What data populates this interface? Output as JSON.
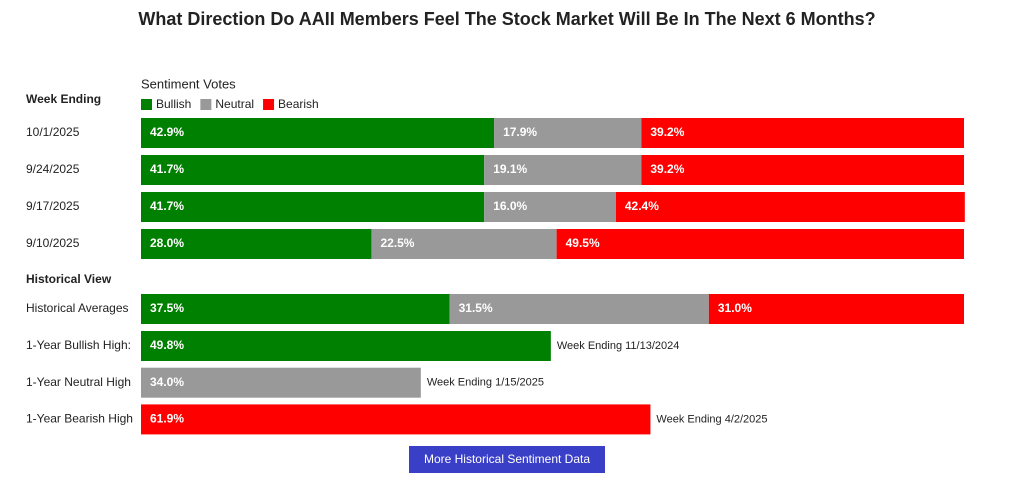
{
  "title": "What Direction Do AAII Members Feel The Stock Market Will Be In The Next 6 Months?",
  "legend_title": "Sentiment Votes",
  "week_ending_label": "Week Ending",
  "series": [
    {
      "name": "Bullish",
      "color": "#008000"
    },
    {
      "name": "Neutral",
      "color": "#999999"
    },
    {
      "name": "Bearish",
      "color": "#ff0000"
    }
  ],
  "weeks": [
    {
      "label": "10/1/2025",
      "values": [
        42.9,
        17.9,
        39.2
      ],
      "value_labels": [
        "42.9%",
        "17.9%",
        "39.2%"
      ]
    },
    {
      "label": "9/24/2025",
      "values": [
        41.7,
        19.1,
        39.2
      ],
      "value_labels": [
        "41.7%",
        "19.1%",
        "39.2%"
      ]
    },
    {
      "label": "9/17/2025",
      "values": [
        41.7,
        16.0,
        42.4
      ],
      "value_labels": [
        "41.7%",
        "16.0%",
        "42.4%"
      ]
    },
    {
      "label": "9/10/2025",
      "values": [
        28.0,
        22.5,
        49.5
      ],
      "value_labels": [
        "28.0%",
        "22.5%",
        "49.5%"
      ]
    }
  ],
  "historical_label": "Historical View",
  "historical_averages": {
    "label": "Historical Averages",
    "values": [
      37.5,
      31.5,
      31.0
    ],
    "value_labels": [
      "37.5%",
      "31.5%",
      "31.0%"
    ]
  },
  "highs": [
    {
      "label": "1-Year Bullish High:",
      "value": 49.8,
      "value_label": "49.8%",
      "color": "#008000",
      "note": "Week Ending 11/13/2024"
    },
    {
      "label": "1-Year Neutral High",
      "value": 34.0,
      "value_label": "34.0%",
      "color": "#999999",
      "note": "Week Ending 1/15/2025"
    },
    {
      "label": "1-Year Bearish High",
      "value": 61.9,
      "value_label": "61.9%",
      "color": "#ff0000",
      "note": "Week Ending 4/2/2025"
    }
  ],
  "button": "More Historical Sentiment Data"
}
